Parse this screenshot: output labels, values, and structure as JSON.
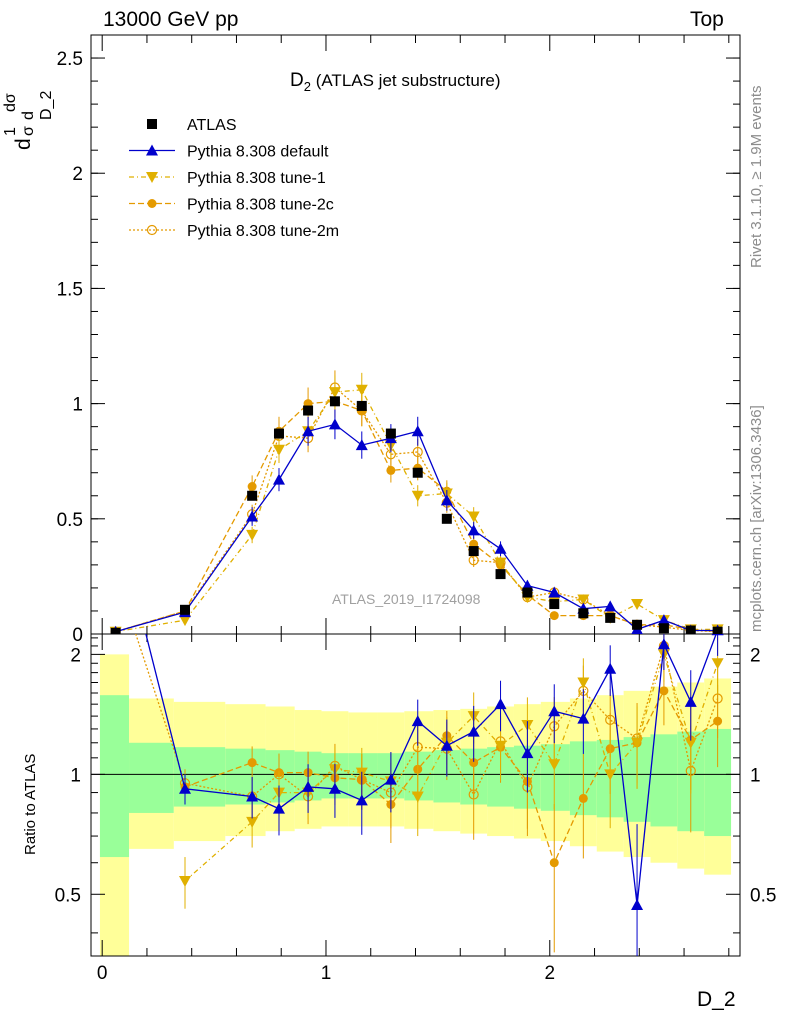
{
  "header": {
    "left": "13000 GeV pp",
    "right": "Top"
  },
  "side": {
    "rivet": "Rivet 3.1.10, ≥ 1.9M events",
    "mcplots": "mcplots.cern.ch [arXiv:1306.3436]"
  },
  "chart_data": {
    "type": "line",
    "title_main": "D",
    "title_sub": "2",
    "title_rest": " (ATLAS jet substructure)",
    "watermark": "ATLAS_2019_I1724098",
    "xlabel": "D_2",
    "ylabel": "1/σ dσ/d D_2",
    "ylabel_parts": [
      "d",
      "1",
      "σ",
      "dσ",
      "d D_2"
    ],
    "ratio_ylabel": "Ratio to ATLAS",
    "xlim": [
      -0.05,
      2.85
    ],
    "ylim": [
      0,
      2.6
    ],
    "ratio_ylim": [
      0.35,
      2.25
    ],
    "x_ticks": [
      "0",
      "1",
      "2"
    ],
    "y_ticks": [
      "0",
      "0.5",
      "1",
      "1.5",
      "2",
      "2.5"
    ],
    "ratio_y_ticks": [
      "0.5",
      "1",
      "2"
    ],
    "x": [
      0.06,
      0.37,
      0.56,
      0.67,
      0.79,
      0.92,
      1.04,
      1.16,
      1.29,
      1.41,
      1.54,
      1.66,
      1.78,
      1.9,
      2.02,
      2.15,
      2.27,
      2.39,
      2.51,
      2.63,
      2.75
    ],
    "data": {
      "name": "ATLAS",
      "color": "#000000",
      "values": [
        0.005,
        0.105,
        null,
        0.6,
        0.87,
        0.97,
        1.01,
        0.99,
        0.87,
        0.7,
        0.5,
        0.36,
        0.26,
        0.18,
        0.13,
        0.09,
        0.07,
        0.04,
        0.025,
        0.015,
        0.01
      ]
    },
    "series": [
      {
        "name": "Pythia 8.308 default",
        "color": "#0000cc",
        "marker": "triangle-up",
        "dash": "",
        "values": [
          0.01,
          0.095,
          null,
          0.51,
          0.67,
          0.88,
          0.91,
          0.82,
          0.85,
          0.88,
          0.58,
          0.45,
          0.37,
          0.21,
          0.18,
          0.11,
          0.12,
          0.02,
          0.06,
          0.015,
          0.015
        ]
      },
      {
        "name": "Pythia 8.308 tune-1",
        "color": "#e0b000",
        "marker": "triangle-down",
        "dash": "5,3,1,3",
        "values": [
          0.01,
          0.06,
          null,
          0.43,
          0.8,
          0.88,
          1.05,
          1.06,
          0.82,
          0.6,
          0.61,
          0.51,
          0.31,
          0.16,
          0.14,
          0.15,
          0.07,
          0.13,
          0.06,
          0.02,
          0.02
        ]
      },
      {
        "name": "Pythia 8.308 tune-2c",
        "color": "#e49a00",
        "marker": "circle-filled",
        "dash": "6,3",
        "values": [
          0.01,
          0.1,
          null,
          0.64,
          0.88,
          1.0,
          1.01,
          0.97,
          0.71,
          0.72,
          0.62,
          0.39,
          0.3,
          0.17,
          0.08,
          0.08,
          0.08,
          0.04,
          0.04,
          0.02,
          0.01
        ]
      },
      {
        "name": "Pythia 8.308 tune-2m",
        "color": "#e49a00",
        "marker": "circle-open",
        "dash": "2,2",
        "values": [
          0.01,
          0.1,
          null,
          0.52,
          0.86,
          0.85,
          1.07,
          0.97,
          0.78,
          0.79,
          0.57,
          0.32,
          0.31,
          0.16,
          0.18,
          0.15,
          0.08,
          0.04,
          0.03,
          0.015,
          0.01
        ]
      }
    ],
    "ratio": {
      "x": [
        0.37,
        0.56,
        0.67,
        0.79,
        0.92,
        1.04,
        1.16,
        1.29,
        1.41,
        1.54,
        1.66,
        1.78,
        1.9,
        2.02,
        2.15,
        2.27,
        2.39,
        2.51,
        2.63,
        2.75
      ],
      "default": [
        0.92,
        null,
        0.88,
        0.82,
        0.93,
        0.92,
        0.86,
        0.97,
        1.36,
        1.18,
        1.28,
        1.5,
        1.13,
        1.44,
        1.38,
        1.84,
        0.47,
        2.12,
        1.52,
        2.3
      ],
      "tune1": [
        0.54,
        null,
        0.76,
        0.9,
        0.9,
        1.03,
        1.01,
        0.96,
        0.88,
        1.2,
        1.4,
        1.18,
        1.33,
        1.06,
        1.7,
        1.0,
        1.2,
        2.0,
        1.2,
        1.9
      ],
      "tune2c": [
        0.93,
        null,
        1.07,
        1.01,
        1.01,
        0.98,
        0.97,
        0.84,
        1.03,
        1.25,
        1.07,
        1.17,
        0.96,
        0.6,
        0.87,
        1.16,
        1.2,
        1.62,
        1.22,
        1.36
      ],
      "tune2m": [
        0.95,
        null,
        0.88,
        1.0,
        0.88,
        1.05,
        0.97,
        0.9,
        1.17,
        1.16,
        0.89,
        1.21,
        0.93,
        1.32,
        1.62,
        1.37,
        1.23,
        2.1,
        1.02,
        1.55
      ]
    },
    "bands": {
      "edges": [
        -0.01,
        0.12,
        0.32,
        0.55,
        0.73,
        0.86,
        0.98,
        1.1,
        1.23,
        1.35,
        1.48,
        1.6,
        1.72,
        1.84,
        1.96,
        2.09,
        2.21,
        2.33,
        2.45,
        2.57,
        2.69,
        2.81
      ],
      "green_lo": [
        0.62,
        0.8,
        0.83,
        0.84,
        0.85,
        0.86,
        0.87,
        0.87,
        0.87,
        0.86,
        0.85,
        0.84,
        0.83,
        0.82,
        0.81,
        0.79,
        0.78,
        0.76,
        0.74,
        0.72,
        0.7
      ],
      "green_hi": [
        1.58,
        1.2,
        1.17,
        1.16,
        1.15,
        1.14,
        1.13,
        1.13,
        1.13,
        1.14,
        1.15,
        1.16,
        1.17,
        1.18,
        1.19,
        1.21,
        1.22,
        1.24,
        1.26,
        1.28,
        1.3
      ],
      "yellow_lo": [
        0.35,
        0.65,
        0.68,
        0.7,
        0.72,
        0.73,
        0.74,
        0.74,
        0.74,
        0.73,
        0.72,
        0.71,
        0.7,
        0.69,
        0.68,
        0.66,
        0.64,
        0.62,
        0.6,
        0.58,
        0.56
      ],
      "yellow_hi": [
        2.0,
        1.55,
        1.52,
        1.5,
        1.48,
        1.45,
        1.44,
        1.43,
        1.43,
        1.44,
        1.45,
        1.46,
        1.48,
        1.5,
        1.52,
        1.55,
        1.58,
        1.62,
        1.66,
        1.7,
        1.74
      ]
    }
  }
}
